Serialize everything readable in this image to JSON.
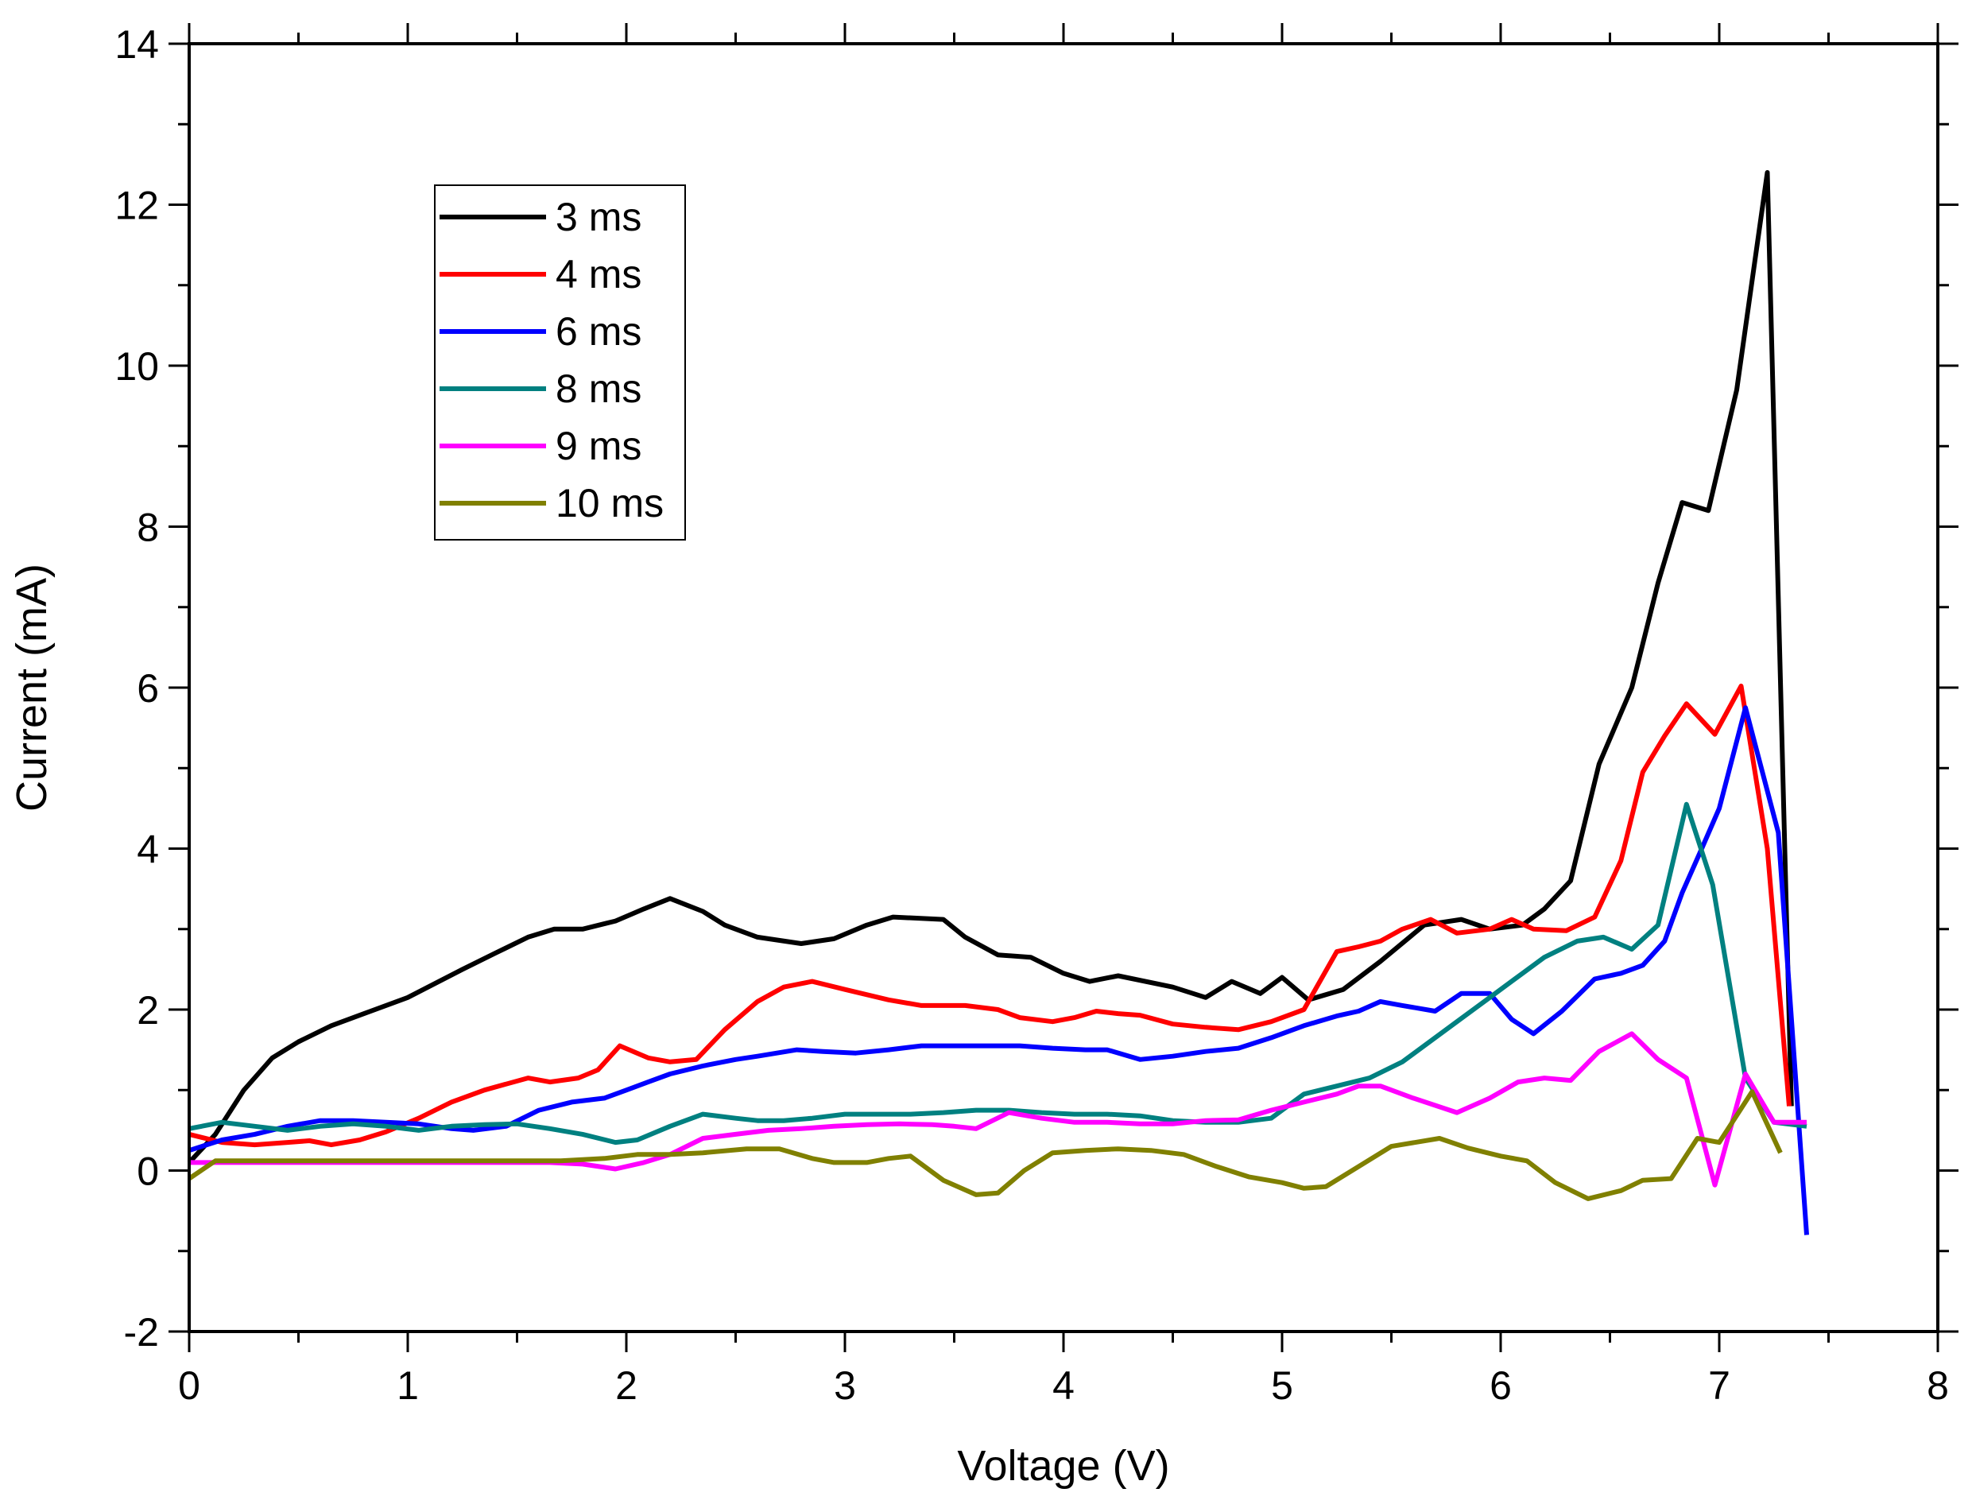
{
  "chart_data": {
    "type": "line",
    "title": "",
    "xlabel": "Voltage (V)",
    "ylabel": "Current (mA)",
    "xlim": [
      0,
      8
    ],
    "ylim": [
      -2,
      14
    ],
    "xticks": [
      0,
      1,
      2,
      3,
      4,
      5,
      6,
      7,
      8
    ],
    "xtick_labels": [
      "0",
      "1",
      "2",
      "3",
      "4",
      "5",
      "6",
      "7",
      "8"
    ],
    "yticks": [
      -2,
      0,
      2,
      4,
      6,
      8,
      10,
      12,
      14
    ],
    "ytick_labels": [
      "-2",
      "0",
      "2",
      "4",
      "6",
      "8",
      "10",
      "12",
      "14"
    ],
    "grid": false,
    "legend_position": "top-left",
    "series": [
      {
        "name": "3 ms",
        "color": "#000000",
        "x": [
          0.0,
          0.12,
          0.25,
          0.38,
          0.5,
          0.65,
          0.8,
          1.0,
          1.25,
          1.4,
          1.55,
          1.67,
          1.8,
          1.95,
          2.08,
          2.2,
          2.35,
          2.45,
          2.6,
          2.8,
          2.95,
          3.1,
          3.22,
          3.45,
          3.55,
          3.7,
          3.85,
          4.0,
          4.12,
          4.25,
          4.5,
          4.65,
          4.77,
          4.9,
          5.0,
          5.12,
          5.28,
          5.45,
          5.65,
          5.82,
          5.95,
          6.1,
          6.2,
          6.32,
          6.45,
          6.6,
          6.72,
          6.83,
          6.95,
          7.08,
          7.22,
          7.33
        ],
        "y": [
          0.1,
          0.45,
          1.0,
          1.4,
          1.6,
          1.8,
          1.95,
          2.15,
          2.5,
          2.7,
          2.9,
          3.0,
          3.0,
          3.1,
          3.25,
          3.38,
          3.22,
          3.05,
          2.9,
          2.82,
          2.88,
          3.05,
          3.15,
          3.12,
          2.9,
          2.68,
          2.65,
          2.45,
          2.35,
          2.42,
          2.28,
          2.15,
          2.35,
          2.2,
          2.4,
          2.12,
          2.25,
          2.6,
          3.05,
          3.12,
          3.0,
          3.05,
          3.25,
          3.6,
          5.05,
          6.0,
          7.3,
          8.3,
          8.2,
          9.7,
          12.4,
          0.8
        ]
      },
      {
        "name": "4 ms",
        "color": "#ff0000",
        "x": [
          0.0,
          0.15,
          0.3,
          0.45,
          0.55,
          0.65,
          0.78,
          0.9,
          1.05,
          1.2,
          1.35,
          1.55,
          1.65,
          1.78,
          1.87,
          1.97,
          2.1,
          2.2,
          2.32,
          2.45,
          2.6,
          2.72,
          2.85,
          3.0,
          3.2,
          3.35,
          3.55,
          3.7,
          3.8,
          3.95,
          4.05,
          4.15,
          4.25,
          4.35,
          4.5,
          4.65,
          4.8,
          4.95,
          5.1,
          5.25,
          5.35,
          5.45,
          5.55,
          5.68,
          5.8,
          5.95,
          6.05,
          6.15,
          6.3,
          6.43,
          6.55,
          6.65,
          6.75,
          6.85,
          6.98,
          7.1,
          7.22,
          7.32
        ],
        "y": [
          0.45,
          0.35,
          0.32,
          0.35,
          0.37,
          0.32,
          0.38,
          0.48,
          0.65,
          0.85,
          1.0,
          1.15,
          1.1,
          1.15,
          1.25,
          1.55,
          1.4,
          1.35,
          1.38,
          1.75,
          2.1,
          2.28,
          2.35,
          2.25,
          2.12,
          2.05,
          2.05,
          2.0,
          1.9,
          1.85,
          1.9,
          1.98,
          1.95,
          1.93,
          1.82,
          1.78,
          1.75,
          1.85,
          2.0,
          2.72,
          2.78,
          2.85,
          3.0,
          3.12,
          2.95,
          3.0,
          3.12,
          3.0,
          2.98,
          3.15,
          3.85,
          4.95,
          5.4,
          5.8,
          5.42,
          6.02,
          4.0,
          0.8
        ]
      },
      {
        "name": "6 ms",
        "color": "#0000ff",
        "x": [
          0.0,
          0.15,
          0.3,
          0.45,
          0.6,
          0.75,
          0.9,
          1.05,
          1.2,
          1.3,
          1.45,
          1.6,
          1.75,
          1.9,
          2.0,
          2.1,
          2.2,
          2.35,
          2.5,
          2.6,
          2.78,
          2.9,
          3.05,
          3.2,
          3.35,
          3.5,
          3.65,
          3.8,
          3.95,
          4.1,
          4.2,
          4.35,
          4.5,
          4.65,
          4.8,
          4.95,
          5.1,
          5.25,
          5.35,
          5.45,
          5.55,
          5.7,
          5.82,
          5.95,
          6.05,
          6.15,
          6.28,
          6.43,
          6.55,
          6.65,
          6.75,
          6.83,
          6.92,
          7.0,
          7.12,
          7.27,
          7.4
        ],
        "y": [
          0.25,
          0.38,
          0.45,
          0.55,
          0.62,
          0.62,
          0.6,
          0.58,
          0.52,
          0.5,
          0.55,
          0.75,
          0.85,
          0.9,
          1.0,
          1.1,
          1.2,
          1.3,
          1.38,
          1.42,
          1.5,
          1.48,
          1.46,
          1.5,
          1.55,
          1.55,
          1.55,
          1.55,
          1.52,
          1.5,
          1.5,
          1.38,
          1.42,
          1.48,
          1.52,
          1.65,
          1.8,
          1.92,
          1.98,
          2.1,
          2.05,
          1.98,
          2.2,
          2.2,
          1.88,
          1.7,
          1.98,
          2.38,
          2.45,
          2.55,
          2.85,
          3.45,
          4.0,
          4.5,
          5.75,
          4.2,
          -0.8
        ]
      },
      {
        "name": "8 ms",
        "color": "#008080",
        "x": [
          0.0,
          0.15,
          0.3,
          0.45,
          0.6,
          0.75,
          0.9,
          1.05,
          1.2,
          1.35,
          1.5,
          1.65,
          1.8,
          1.95,
          2.05,
          2.2,
          2.35,
          2.5,
          2.6,
          2.72,
          2.85,
          3.0,
          3.15,
          3.3,
          3.45,
          3.6,
          3.75,
          3.9,
          4.05,
          4.2,
          4.35,
          4.5,
          4.65,
          4.8,
          4.95,
          5.1,
          5.25,
          5.4,
          5.55,
          5.65,
          5.8,
          5.95,
          6.1,
          6.2,
          6.35,
          6.47,
          6.6,
          6.72,
          6.85,
          6.97,
          7.12,
          7.25,
          7.4
        ],
        "y": [
          0.52,
          0.6,
          0.55,
          0.5,
          0.55,
          0.58,
          0.55,
          0.5,
          0.55,
          0.57,
          0.58,
          0.52,
          0.45,
          0.35,
          0.38,
          0.55,
          0.7,
          0.65,
          0.62,
          0.62,
          0.65,
          0.7,
          0.7,
          0.7,
          0.72,
          0.75,
          0.75,
          0.72,
          0.7,
          0.7,
          0.68,
          0.62,
          0.6,
          0.6,
          0.65,
          0.95,
          1.05,
          1.15,
          1.35,
          1.55,
          1.85,
          2.15,
          2.45,
          2.65,
          2.85,
          2.9,
          2.75,
          3.05,
          4.55,
          3.55,
          1.15,
          0.6,
          0.55
        ]
      },
      {
        "name": "9 ms",
        "color": "#ff00ff",
        "x": [
          0.0,
          0.15,
          0.3,
          0.45,
          0.6,
          0.75,
          0.9,
          1.05,
          1.2,
          1.35,
          1.5,
          1.65,
          1.8,
          1.95,
          2.08,
          2.2,
          2.35,
          2.5,
          2.65,
          2.8,
          2.95,
          3.1,
          3.25,
          3.4,
          3.5,
          3.6,
          3.75,
          3.9,
          4.05,
          4.2,
          4.35,
          4.5,
          4.65,
          4.8,
          4.95,
          5.1,
          5.25,
          5.35,
          5.45,
          5.6,
          5.8,
          5.95,
          6.08,
          6.2,
          6.32,
          6.45,
          6.6,
          6.72,
          6.85,
          6.98,
          7.12,
          7.25,
          7.4
        ],
        "y": [
          0.1,
          0.1,
          0.1,
          0.1,
          0.1,
          0.1,
          0.1,
          0.1,
          0.1,
          0.1,
          0.1,
          0.1,
          0.08,
          0.02,
          0.1,
          0.2,
          0.4,
          0.45,
          0.5,
          0.52,
          0.55,
          0.57,
          0.58,
          0.57,
          0.55,
          0.52,
          0.72,
          0.65,
          0.6,
          0.6,
          0.58,
          0.58,
          0.62,
          0.63,
          0.75,
          0.85,
          0.95,
          1.05,
          1.05,
          0.9,
          0.72,
          0.9,
          1.1,
          1.15,
          1.12,
          1.48,
          1.7,
          1.38,
          1.15,
          -0.18,
          1.2,
          0.6,
          0.6
        ]
      },
      {
        "name": "10 ms",
        "color": "#808000",
        "x": [
          0.0,
          0.12,
          0.3,
          0.5,
          0.7,
          0.9,
          1.1,
          1.3,
          1.5,
          1.7,
          1.9,
          2.05,
          2.2,
          2.35,
          2.55,
          2.7,
          2.85,
          2.95,
          3.1,
          3.2,
          3.3,
          3.45,
          3.6,
          3.7,
          3.82,
          3.95,
          4.1,
          4.25,
          4.4,
          4.55,
          4.7,
          4.85,
          5.0,
          5.1,
          5.2,
          5.35,
          5.5,
          5.72,
          5.85,
          6.0,
          6.12,
          6.25,
          6.4,
          6.55,
          6.65,
          6.78,
          6.9,
          7.0,
          7.15,
          7.28
        ],
        "y": [
          -0.1,
          0.12,
          0.12,
          0.12,
          0.12,
          0.12,
          0.12,
          0.12,
          0.12,
          0.12,
          0.15,
          0.2,
          0.2,
          0.22,
          0.27,
          0.27,
          0.15,
          0.1,
          0.1,
          0.15,
          0.18,
          -0.12,
          -0.3,
          -0.28,
          0.0,
          0.22,
          0.25,
          0.27,
          0.25,
          0.2,
          0.05,
          -0.08,
          -0.15,
          -0.22,
          -0.2,
          0.05,
          0.3,
          0.4,
          0.28,
          0.18,
          0.12,
          -0.15,
          -0.35,
          -0.25,
          -0.12,
          -0.1,
          0.4,
          0.35,
          0.98,
          0.22
        ]
      }
    ]
  }
}
